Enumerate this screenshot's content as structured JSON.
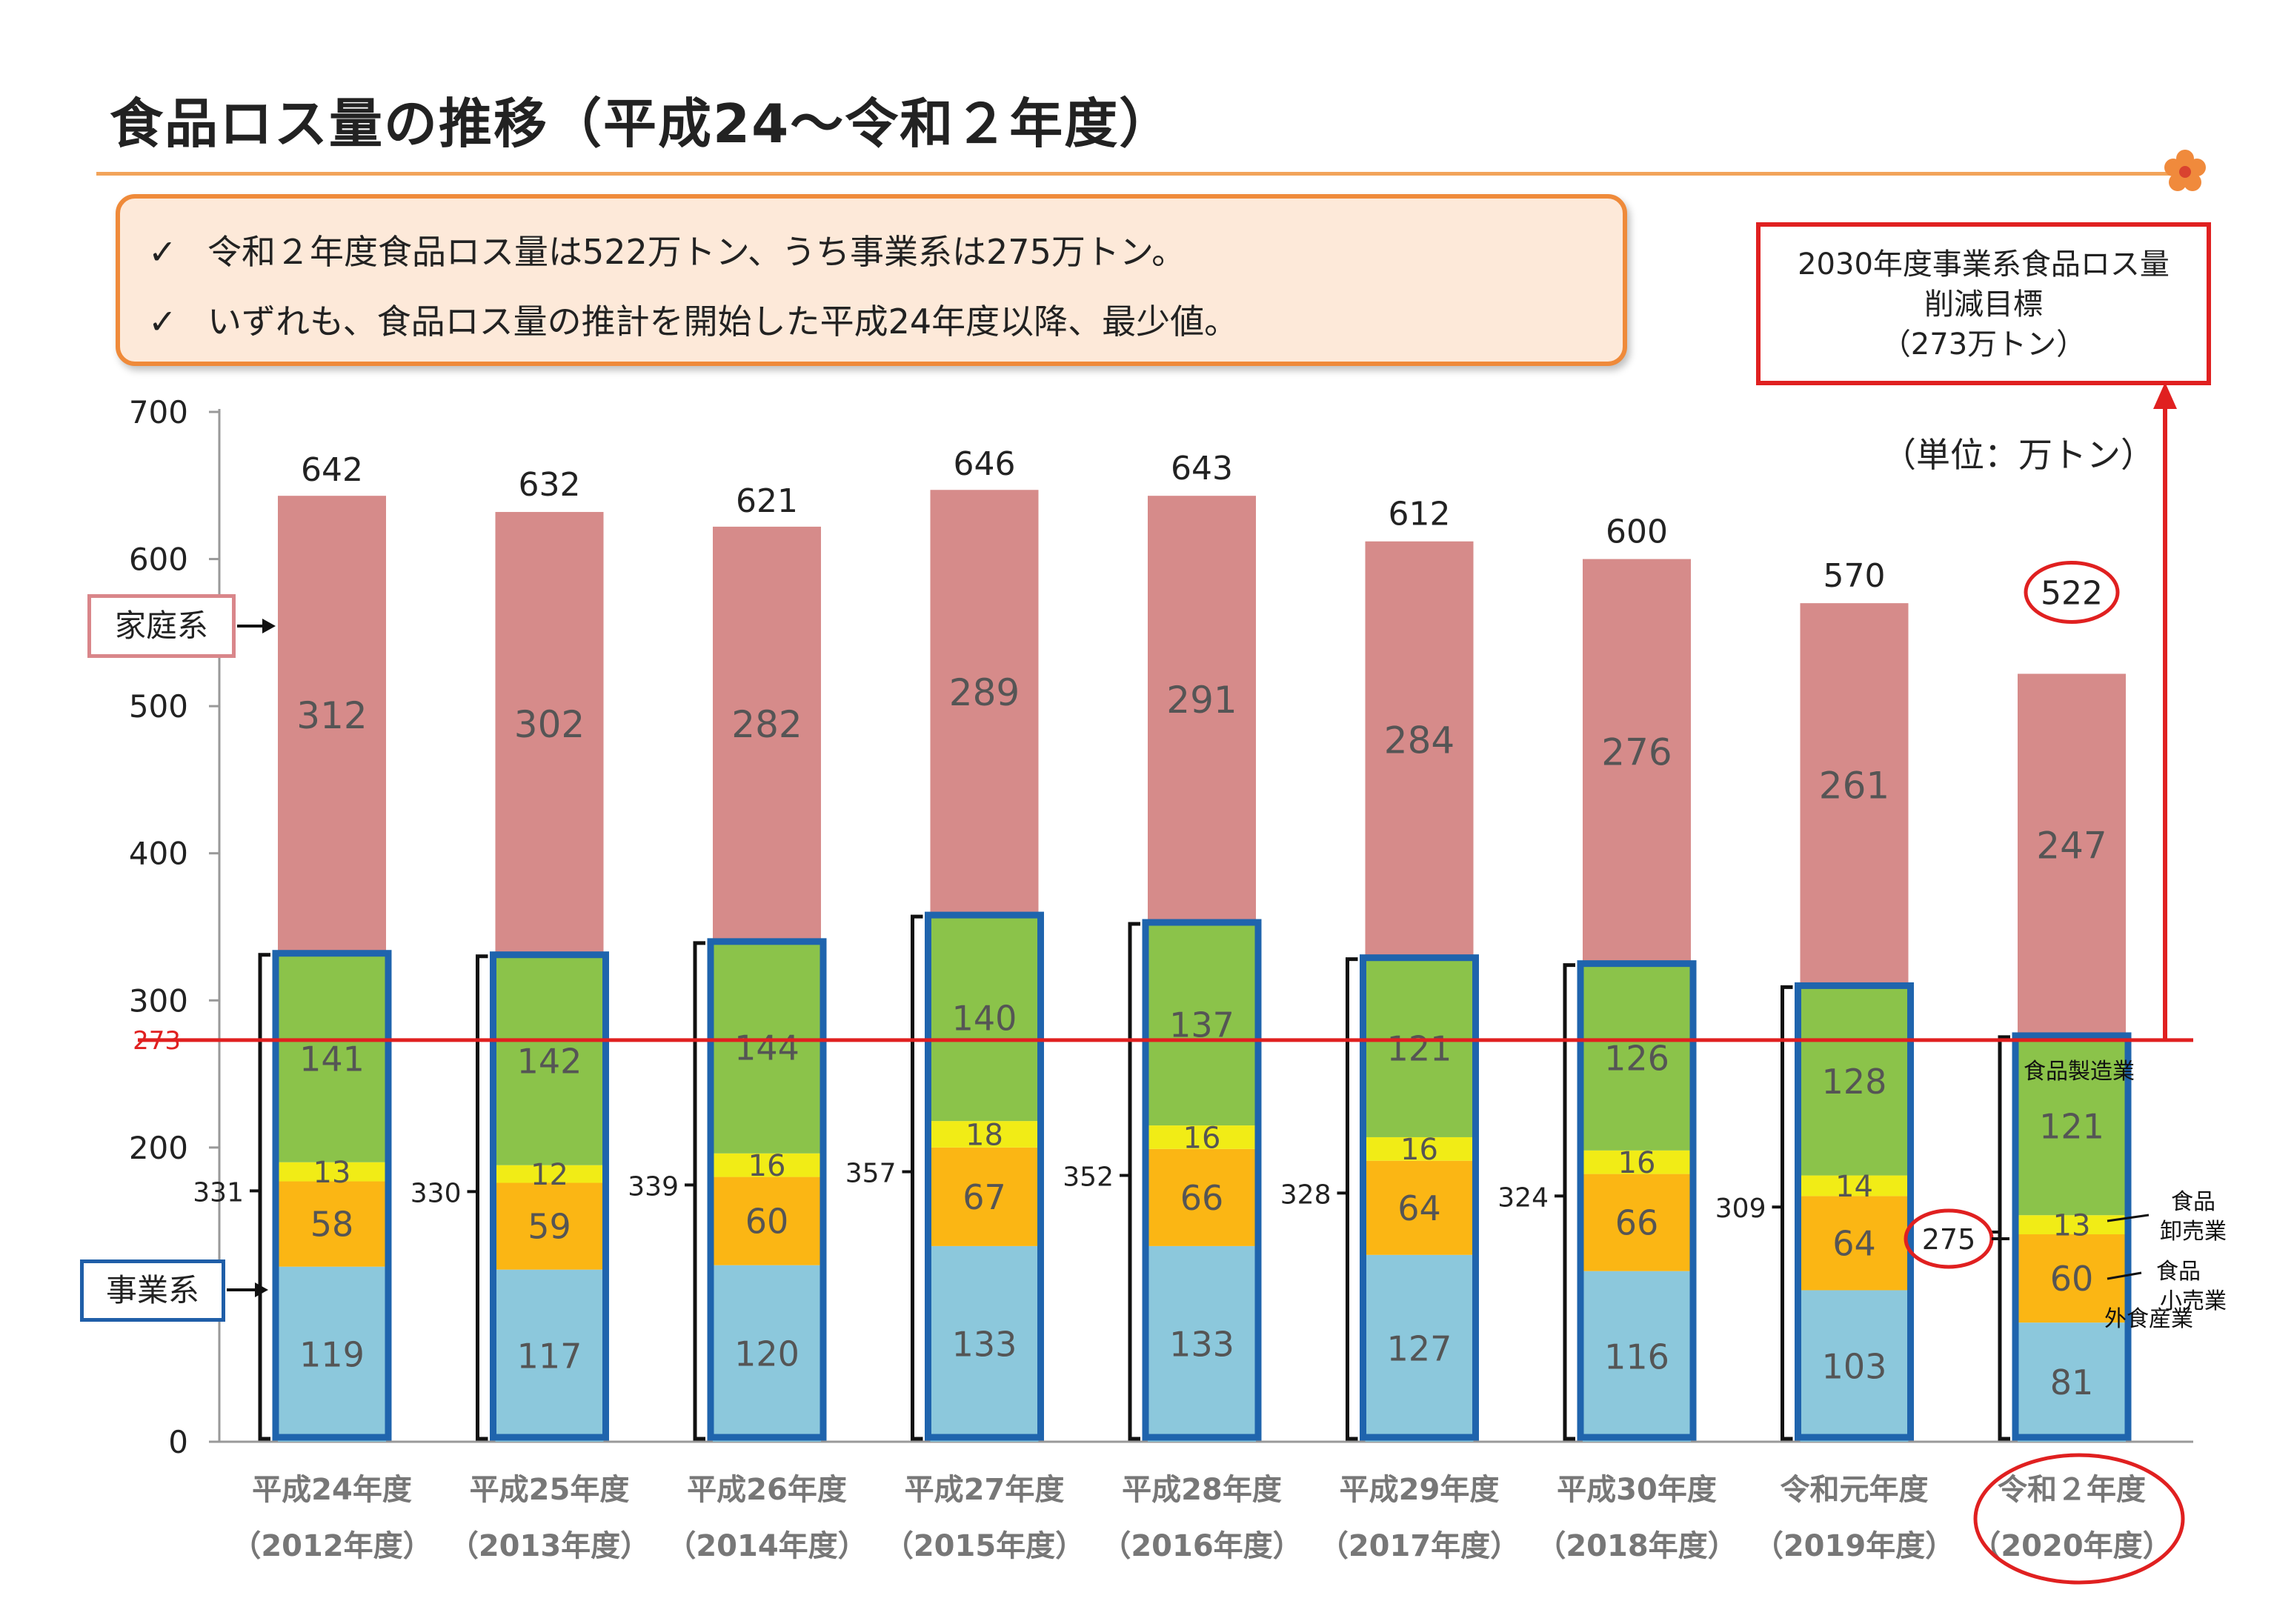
{
  "title": "食品ロス量の推移（平成24～令和２年度）",
  "summary": {
    "check_mark": "✓",
    "lines": [
      "令和２年度食品ロス量は522万トン、うち事業系は275万トン。",
      "いずれも、食品ロス量の推計を開始した平成24年度以降、最少値。"
    ]
  },
  "target_box": {
    "line1": "2030年度事業系食品ロス量",
    "line2": "削減目標",
    "line3": "（273万トン）"
  },
  "unit": "（単位：万トン）",
  "callouts": {
    "household": "家庭系",
    "business": "事業系"
  },
  "segment_labels": {
    "manufacturing": "食品製造業",
    "wholesale_1": "食品",
    "wholesale_2": "卸売業",
    "retail_1": "食品",
    "retail_2": "小売業",
    "restaurant": "外食産業"
  },
  "colors": {
    "household": "#d68b8a",
    "manufacturing": "#8bc34a",
    "wholesale": "#f1ec16",
    "retail": "#fbb614",
    "restaurant": "#8cc8dc",
    "business_outline": "#1f64ad",
    "target_line": "#e02020",
    "highlight_circle": "#e02020",
    "title_rule": "#f2a45a"
  },
  "chart_data": {
    "type": "bar",
    "stacked": true,
    "categories": [
      [
        "平成24年度",
        "（2012年度）"
      ],
      [
        "平成25年度",
        "（2013年度）"
      ],
      [
        "平成26年度",
        "（2014年度）"
      ],
      [
        "平成27年度",
        "（2015年度）"
      ],
      [
        "平成28年度",
        "（2016年度）"
      ],
      [
        "平成29年度",
        "（2017年度）"
      ],
      [
        "平成30年度",
        "（2018年度）"
      ],
      [
        "令和元年度",
        "（2019年度）"
      ],
      [
        "令和２年度",
        "（2020年度）"
      ]
    ],
    "series": [
      {
        "key": "restaurant",
        "values": [
          119,
          117,
          120,
          133,
          133,
          127,
          116,
          103,
          81
        ]
      },
      {
        "key": "retail",
        "values": [
          58,
          59,
          60,
          67,
          66,
          64,
          66,
          64,
          60
        ]
      },
      {
        "key": "wholesale",
        "values": [
          13,
          12,
          16,
          18,
          16,
          16,
          16,
          14,
          13
        ]
      },
      {
        "key": "manufacturing",
        "values": [
          141,
          142,
          144,
          140,
          137,
          121,
          126,
          128,
          121
        ]
      },
      {
        "key": "household",
        "values": [
          312,
          302,
          282,
          289,
          291,
          284,
          276,
          261,
          247
        ]
      }
    ],
    "totals": [
      642,
      632,
      621,
      646,
      643,
      612,
      600,
      570,
      522
    ],
    "business_totals": [
      331,
      330,
      339,
      357,
      352,
      328,
      324,
      309,
      275
    ],
    "ylim": [
      0,
      700
    ],
    "yticks": [
      0,
      100,
      200,
      300,
      400,
      500,
      600,
      700
    ],
    "reference_line": {
      "value": 273,
      "label": "273"
    },
    "highlight": {
      "category_index": 8,
      "total": "522",
      "business_total": "275"
    }
  }
}
